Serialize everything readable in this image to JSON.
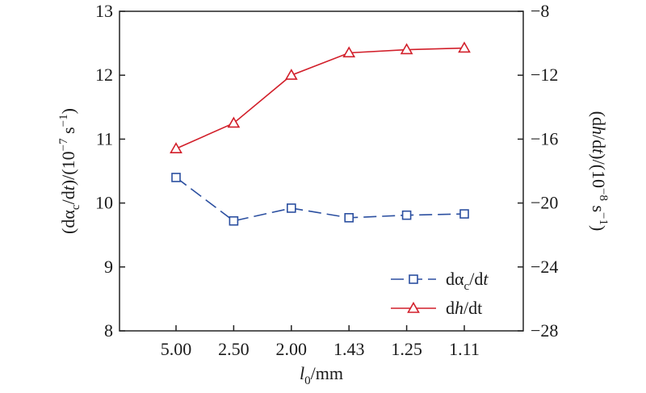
{
  "chart_data": {
    "type": "line",
    "categories": [
      "5.00",
      "2.50",
      "2.00",
      "1.43",
      "1.25",
      "1.11"
    ],
    "x_axis": {
      "label_var": "l",
      "label_sub": "0",
      "label_unit": "/mm"
    },
    "left_axis": {
      "ylim": [
        8,
        13
      ],
      "ticks": [
        "8",
        "9",
        "10",
        "11",
        "12",
        "13"
      ],
      "label_pre": "(dα",
      "label_sub": "c",
      "label_mid": "/d",
      "label_var": "t",
      "label_post": ")/(10",
      "label_exp": "−7",
      "label_unit": " s",
      "label_exp2": "−1",
      "label_close": ")"
    },
    "right_axis": {
      "ylim": [
        -28,
        -8
      ],
      "ticks": [
        "−28",
        "−24",
        "−20",
        "−16",
        "−12",
        "−8"
      ],
      "label_pre": "(d",
      "label_var": "h",
      "label_mid": "/d",
      "label_var2": "t",
      "label_post": ")/(10",
      "label_exp": "−8",
      "label_unit": " s",
      "label_exp2": "−1",
      "label_close": ")"
    },
    "series": [
      {
        "name": "dαc/dt",
        "legend_pre": "dα",
        "legend_sub": "c",
        "legend_post": "/d",
        "legend_var": "t",
        "axis": "left",
        "values": [
          10.4,
          9.72,
          9.92,
          9.77,
          9.81,
          9.83
        ],
        "marker": "square",
        "line_style": "dashed",
        "color": "#2b4fa0"
      },
      {
        "name": "dh/dt",
        "legend_pre": "d",
        "legend_var": "h",
        "legend_post": "/dt",
        "axis": "right",
        "values": [
          -16.6,
          -15.0,
          -12.0,
          -10.6,
          -10.4,
          -10.3
        ],
        "marker": "triangle",
        "line_style": "solid",
        "color": "#d21f2a"
      }
    ],
    "grid": false,
    "legend_position": "bottom-right"
  }
}
